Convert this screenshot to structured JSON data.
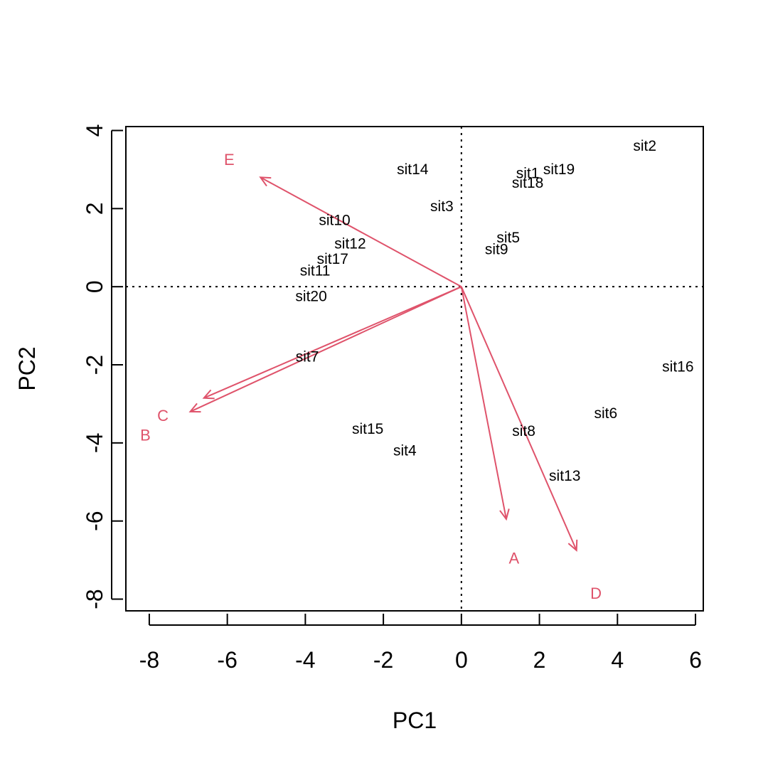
{
  "chart_data": {
    "type": "scatter",
    "subtype": "pca-biplot",
    "title": "",
    "xlabel": "PC1",
    "ylabel": "PC2",
    "xlim": [
      -8.6,
      6.2
    ],
    "ylim": [
      -8.3,
      4.1
    ],
    "x_ticks": [
      -8,
      -6,
      -4,
      -2,
      0,
      2,
      4,
      6
    ],
    "y_ticks": [
      -8,
      -6,
      -4,
      -2,
      0,
      2,
      4
    ],
    "x_tick_labels": [
      "-8",
      "-6",
      "-4",
      "-2",
      "0",
      "2",
      "4",
      "6"
    ],
    "y_tick_labels": [
      "-8",
      "-6",
      "-4",
      "-2",
      "0",
      "2",
      "4"
    ],
    "grid": false,
    "reference_lines": {
      "x": 0,
      "y": 0,
      "style": "dotted"
    },
    "colors": {
      "points": "#000000",
      "loadings": "#DF536B",
      "axes": "#000000"
    },
    "points": [
      {
        "label": "sit1",
        "x": 1.7,
        "y": 2.9
      },
      {
        "label": "sit2",
        "x": 4.7,
        "y": 3.6
      },
      {
        "label": "sit3",
        "x": -0.5,
        "y": 2.05
      },
      {
        "label": "sit4",
        "x": -1.45,
        "y": -4.2
      },
      {
        "label": "sit5",
        "x": 1.2,
        "y": 1.25
      },
      {
        "label": "sit6",
        "x": 3.7,
        "y": -3.25
      },
      {
        "label": "sit7",
        "x": -3.95,
        "y": -1.8
      },
      {
        "label": "sit8",
        "x": 1.6,
        "y": -3.7
      },
      {
        "label": "sit9",
        "x": 0.9,
        "y": 0.95
      },
      {
        "label": "sit10",
        "x": -3.25,
        "y": 1.7
      },
      {
        "label": "sit11",
        "x": -3.75,
        "y": 0.4
      },
      {
        "label": "sit12",
        "x": -2.85,
        "y": 1.1
      },
      {
        "label": "sit13",
        "x": 2.65,
        "y": -4.85
      },
      {
        "label": "sit14",
        "x": -1.25,
        "y": 3.0
      },
      {
        "label": "sit15",
        "x": -2.4,
        "y": -3.65
      },
      {
        "label": "sit16",
        "x": 5.55,
        "y": -2.05
      },
      {
        "label": "sit17",
        "x": -3.3,
        "y": 0.7
      },
      {
        "label": "sit18",
        "x": 1.7,
        "y": 2.65
      },
      {
        "label": "sit19",
        "x": 2.5,
        "y": 3.0
      },
      {
        "label": "sit20",
        "x": -3.85,
        "y": -0.25
      }
    ],
    "loadings": [
      {
        "label": "A",
        "x": 1.15,
        "y": -5.95,
        "label_x": 1.35,
        "label_y": -6.95
      },
      {
        "label": "B",
        "x": -6.6,
        "y": -2.85,
        "label_x": -8.1,
        "label_y": -3.8
      },
      {
        "label": "C",
        "x": -6.95,
        "y": -3.2,
        "label_x": -7.65,
        "label_y": -3.3
      },
      {
        "label": "D",
        "x": 2.95,
        "y": -6.75,
        "label_x": 3.45,
        "label_y": -7.85
      },
      {
        "label": "E",
        "x": -5.15,
        "y": 2.8,
        "label_x": -5.95,
        "label_y": 3.25
      }
    ]
  }
}
